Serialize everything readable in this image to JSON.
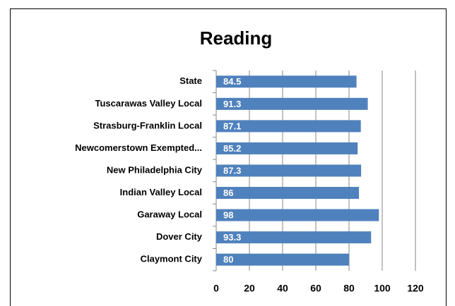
{
  "chart_data": {
    "type": "bar",
    "orientation": "horizontal",
    "title": "Reading",
    "categories": [
      "State",
      "Tuscarawas Valley Local",
      "Strasburg-Franklin Local",
      "Newcomerstown Exempted...",
      "New Philadelphia City",
      "Indian Valley Local",
      "Garaway Local",
      "Dover City",
      "Claymont City"
    ],
    "values": [
      84.5,
      91.3,
      87.1,
      85.2,
      87.3,
      86,
      98,
      93.3,
      80
    ],
    "color": "#4f81bd",
    "xlim": [
      0,
      120
    ],
    "xticks": [
      0,
      20,
      40,
      60,
      80,
      100,
      120
    ],
    "grid": true
  }
}
